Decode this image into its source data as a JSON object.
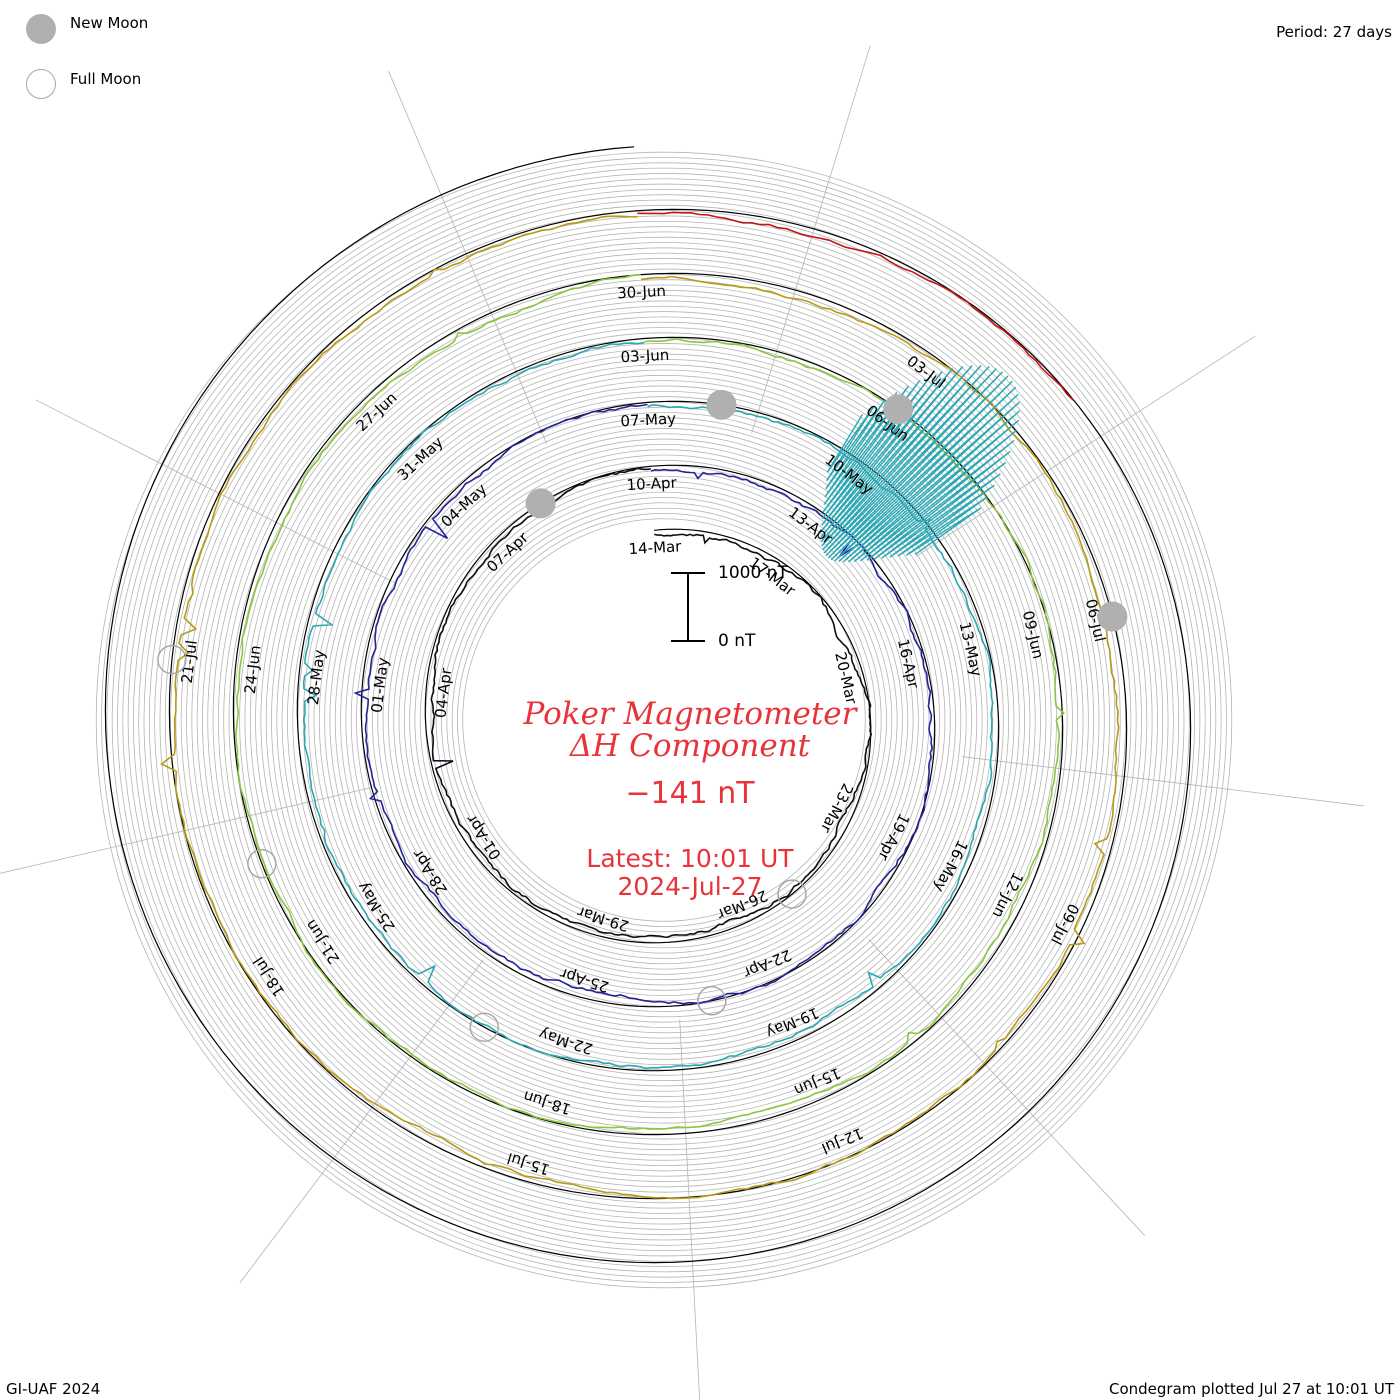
{
  "legend": {
    "new_moon_label": "New Moon",
    "full_moon_label": "Full Moon"
  },
  "period_label": "Period: 27 days",
  "footer": {
    "left": "GI-UAF 2024",
    "right": "Condegram plotted Jul 27 at 10:01 UT"
  },
  "scale_bar": {
    "top_label": "1000 nT",
    "bottom_label": "0 nT"
  },
  "title": {
    "line1": "Poker Magnetometer",
    "line2": "ΔH Component",
    "value": "−141 nT",
    "latest_line1": "Latest: 10:01 UT",
    "latest_line2": "2024-Jul-27"
  },
  "colors": {
    "title": "#e8333a",
    "grid": "#b4b4b4",
    "baseline": "#000000",
    "moon_new": "#b0b0b0",
    "moon_full": "#a8a8a8"
  },
  "chart_data": {
    "type": "line",
    "subtype": "condegram spiral (27-day period)",
    "component": "ΔH",
    "units": "nT",
    "scale": [
      0,
      1000
    ],
    "latest_value": -141,
    "turns": [
      {
        "color": "#0d0d1a",
        "dates": [
          "14-Mar",
          "17-Mar",
          "20-Mar",
          "23-Mar",
          "26-Mar",
          "29-Mar",
          "01-Apr",
          "04-Apr",
          "07-Apr"
        ]
      },
      {
        "color": "#23239c",
        "dates": [
          "10-Apr",
          "13-Apr",
          "16-Apr",
          "19-Apr",
          "22-Apr",
          "25-Apr",
          "28-Apr",
          "01-May",
          "04-May"
        ]
      },
      {
        "color": "#2aa8b4",
        "dates": [
          "07-May",
          "10-May",
          "13-May",
          "16-May",
          "19-May",
          "22-May",
          "25-May",
          "28-May",
          "31-May"
        ]
      },
      {
        "color": "#8cc63c",
        "dates": [
          "03-Jun",
          "06-Jun",
          "09-Jun",
          "12-Jun",
          "15-Jun",
          "18-Jun",
          "21-Jun",
          "24-Jun",
          "27-Jun"
        ]
      },
      {
        "color": "#b89a14",
        "dates": [
          "30-Jun",
          "03-Jul",
          "06-Jul",
          "09-Jul",
          "12-Jul",
          "15-Jul",
          "18-Jul",
          "21-Jul"
        ]
      },
      {
        "color": "#c41414",
        "dates": []
      }
    ],
    "new_moons": [
      "08-Apr",
      "08-May",
      "06-Jun",
      "06-Jul"
    ],
    "full_moons": [
      "25-Mar",
      "23-Apr",
      "23-May",
      "22-Jun",
      "21-Jul"
    ],
    "storm_event": "10-May to 12-May (large excursions, peak > 1000 nT)"
  }
}
